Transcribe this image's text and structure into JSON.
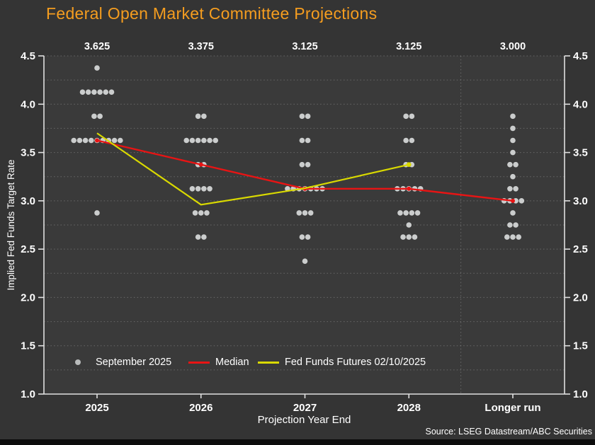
{
  "title": "Federal Open Market Committee Projections",
  "source": "Source: LSEG Datastream/ABC Securities",
  "colors": {
    "background": "#343434",
    "plot_background": "#3a3a3a",
    "title": "#f59d1f",
    "dots": "#cbcdcd",
    "median_line": "#e81414",
    "futures_line": "#d9d900",
    "axis": "#e0e0e0",
    "grid": "#909090",
    "text": "#ffffff",
    "footer_bar": "#0c0c0c"
  },
  "legend": {
    "items": [
      {
        "label": "September 2025",
        "marker": "dot",
        "color": "#b9bbbb"
      },
      {
        "label": "Median",
        "marker": "line",
        "color": "#e81414"
      },
      {
        "label": "Fed Funds Futures 02/10/2025",
        "marker": "line",
        "color": "#d9d900"
      }
    ]
  },
  "chart_data": {
    "type": "scatter",
    "title": "Federal Open Market Committee Projections",
    "xlabel": "Projection Year End",
    "ylabel": "Implied Fed Funds Target Rate",
    "ylim": [
      1.0,
      4.5
    ],
    "y_tick_step": 0.5,
    "grid_step": 0.25,
    "grid": "dotted horizontal lines every 0.25, dotted vertical separator before Longer run, legend inside plot bottom",
    "categories": [
      "2025",
      "2026",
      "2027",
      "2028",
      "Longer run"
    ],
    "top_labels": [
      "3.625",
      "3.375",
      "3.125",
      "3.125",
      "3.000"
    ],
    "dot_plot": [
      {
        "category": "2025",
        "levels": [
          {
            "rate": 4.375,
            "count": 1
          },
          {
            "rate": 4.125,
            "count": 6
          },
          {
            "rate": 3.875,
            "count": 2
          },
          {
            "rate": 3.625,
            "count": 9
          },
          {
            "rate": 2.875,
            "count": 1
          }
        ]
      },
      {
        "category": "2026",
        "levels": [
          {
            "rate": 3.875,
            "count": 2
          },
          {
            "rate": 3.625,
            "count": 6
          },
          {
            "rate": 3.375,
            "count": 2
          },
          {
            "rate": 3.125,
            "count": 4
          },
          {
            "rate": 2.875,
            "count": 3
          },
          {
            "rate": 2.625,
            "count": 2
          }
        ]
      },
      {
        "category": "2027",
        "levels": [
          {
            "rate": 3.875,
            "count": 2
          },
          {
            "rate": 3.625,
            "count": 2
          },
          {
            "rate": 3.375,
            "count": 2
          },
          {
            "rate": 3.125,
            "count": 7
          },
          {
            "rate": 2.875,
            "count": 3
          },
          {
            "rate": 2.625,
            "count": 2
          },
          {
            "rate": 2.375,
            "count": 1
          }
        ]
      },
      {
        "category": "2028",
        "levels": [
          {
            "rate": 3.875,
            "count": 2
          },
          {
            "rate": 3.625,
            "count": 2
          },
          {
            "rate": 3.375,
            "count": 2
          },
          {
            "rate": 3.125,
            "count": 5
          },
          {
            "rate": 2.875,
            "count": 4
          },
          {
            "rate": 2.75,
            "count": 1
          },
          {
            "rate": 2.625,
            "count": 3
          }
        ]
      },
      {
        "category": "Longer run",
        "levels": [
          {
            "rate": 3.875,
            "count": 1
          },
          {
            "rate": 3.75,
            "count": 1
          },
          {
            "rate": 3.625,
            "count": 1
          },
          {
            "rate": 3.5,
            "count": 1
          },
          {
            "rate": 3.375,
            "count": 2
          },
          {
            "rate": 3.25,
            "count": 1
          },
          {
            "rate": 3.125,
            "count": 2
          },
          {
            "rate": 3.0,
            "count": 4
          },
          {
            "rate": 2.875,
            "count": 1
          },
          {
            "rate": 2.75,
            "count": 2
          },
          {
            "rate": 2.625,
            "count": 3
          }
        ]
      }
    ],
    "series": [
      {
        "name": "September 2025",
        "type": "dots",
        "color": "#cbcdcd"
      },
      {
        "name": "Median",
        "type": "line",
        "color": "#e81414",
        "values": [
          3.625,
          3.375,
          3.125,
          3.125,
          3.0
        ]
      },
      {
        "name": "Fed Funds Futures 02/10/2025",
        "type": "line",
        "color": "#d9d900",
        "values": [
          3.7,
          2.96,
          3.13,
          3.375,
          null
        ]
      }
    ]
  }
}
